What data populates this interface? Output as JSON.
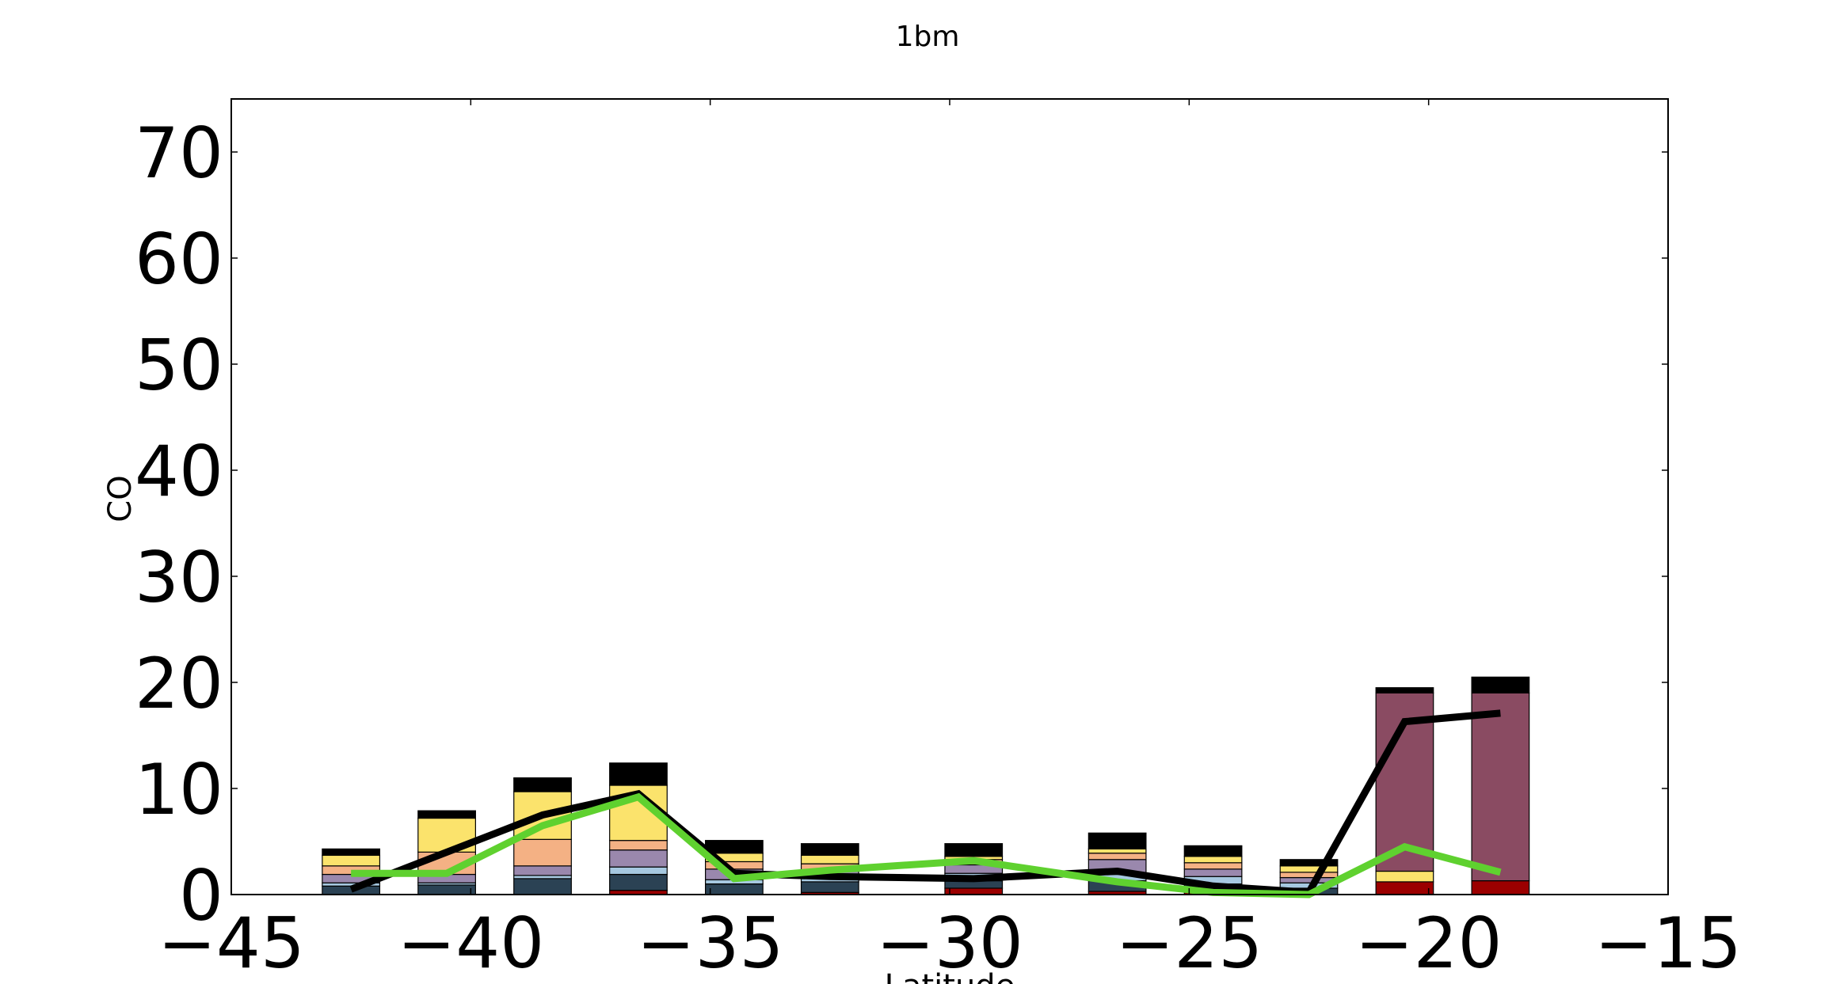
{
  "chart_data": {
    "type": "bar",
    "title": "1bm",
    "xlabel": "Latitude",
    "ylabel": "CO",
    "xlim": [
      -45,
      -15
    ],
    "ylim": [
      0,
      75
    ],
    "xticks": [
      "−45",
      "−40",
      "−35",
      "−30",
      "−25",
      "−20",
      "−15"
    ],
    "xtick_values": [
      -45,
      -40,
      -35,
      -30,
      -25,
      -20,
      -15
    ],
    "yticks": [
      "0",
      "10",
      "20",
      "30",
      "40",
      "50",
      "60",
      "70"
    ],
    "ytick_values": [
      0,
      10,
      20,
      30,
      40,
      50,
      60,
      70
    ],
    "grid": false,
    "bar_width": 1.2,
    "x": [
      -42.5,
      -40.5,
      -38.5,
      -36.5,
      -34.5,
      -32.5,
      -29.5,
      -26.5,
      -24.5,
      -22.5,
      -20.5,
      -18.5
    ],
    "stack_colors": [
      "#9b0000",
      "#2b4254",
      "#a6c8e0",
      "#9a88ad",
      "#f4b184",
      "#fbe36c",
      "#8a4b62",
      "#000000"
    ],
    "stacks": [
      [
        0.0,
        0.8,
        0.3,
        0.8,
        0.8,
        1.0,
        0.0,
        0.6
      ],
      [
        0.0,
        0.9,
        0.2,
        0.8,
        2.1,
        3.2,
        0.0,
        0.7
      ],
      [
        0.0,
        1.5,
        0.3,
        0.9,
        2.5,
        4.5,
        0.0,
        1.3
      ],
      [
        0.4,
        1.5,
        0.7,
        1.6,
        0.9,
        5.2,
        0.0,
        2.1
      ],
      [
        0.0,
        1.0,
        0.4,
        1.0,
        0.7,
        0.8,
        0.0,
        1.2
      ],
      [
        0.2,
        1.0,
        0.3,
        0.8,
        0.6,
        0.8,
        0.0,
        1.1
      ],
      [
        0.6,
        0.7,
        0.7,
        0.8,
        0.5,
        0.3,
        0.0,
        1.2
      ],
      [
        0.3,
        1.0,
        0.6,
        1.4,
        0.6,
        0.4,
        0.0,
        1.5
      ],
      [
        0.2,
        0.8,
        0.7,
        0.7,
        0.6,
        0.6,
        0.0,
        1.0
      ],
      [
        0.0,
        0.6,
        0.5,
        0.5,
        0.5,
        0.6,
        0.0,
        0.6
      ],
      [
        1.2,
        0.0,
        0.0,
        0.0,
        0.0,
        1.0,
        16.8,
        0.5
      ],
      [
        1.3,
        0.0,
        0.0,
        0.0,
        0.0,
        0.0,
        17.7,
        1.5
      ]
    ],
    "series": [
      {
        "color": "#000000",
        "values": [
          0.5,
          4.0,
          7.5,
          9.5,
          2.0,
          1.7,
          1.5,
          2.2,
          0.8,
          0.2,
          16.3,
          17.1
        ]
      },
      {
        "color": "#5fd12f",
        "values": [
          2.0,
          2.0,
          6.5,
          9.2,
          1.5,
          2.3,
          3.2,
          1.2,
          0.2,
          0.0,
          4.5,
          2.1
        ]
      }
    ]
  }
}
